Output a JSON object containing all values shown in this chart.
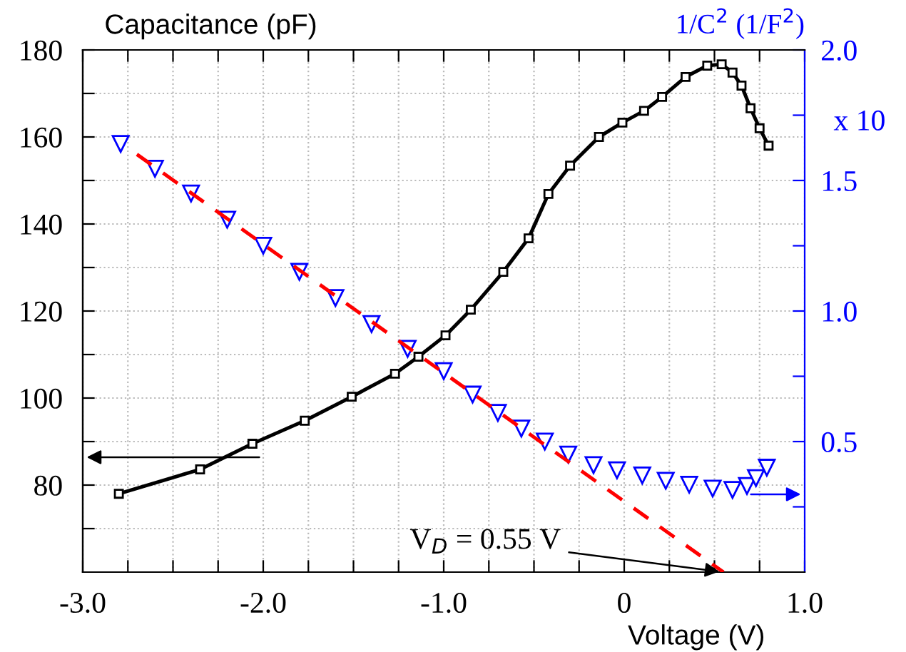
{
  "chart_data": {
    "type": "line",
    "xlabel": "Voltage (V)",
    "ylabel": "Capacitance (pF)",
    "y2label": "1/C$^{2}$ (1/F$^{2}$)",
    "annotations": [
      "x 10",
      {
        "text": "V$_{D}$ = 0.55 V",
        "x": 0.55,
        "y": 60
      }
    ],
    "xlim": [
      -3,
      1
    ],
    "xticks": [
      {
        "value": -3,
        "label": "-3.0"
      },
      {
        "value": -2.75,
        "label": null
      },
      {
        "value": -2.5,
        "label": null
      },
      {
        "value": -2.25,
        "label": null
      },
      {
        "value": -2,
        "label": "-2.0"
      },
      {
        "value": -1.75,
        "label": null
      },
      {
        "value": -1.5,
        "label": null
      },
      {
        "value": -1.25,
        "label": null
      },
      {
        "value": -1,
        "label": "-1.0"
      },
      {
        "value": -0.75,
        "label": null
      },
      {
        "value": -0.5,
        "label": null
      },
      {
        "value": -0.25,
        "label": null
      },
      0,
      {
        "value": 0.25,
        "label": null
      },
      {
        "value": 0.5,
        "label": null
      },
      {
        "value": 0.75,
        "label": null
      },
      {
        "value": 1,
        "label": "1.0"
      }
    ],
    "ylim": [
      60,
      180
    ],
    "yticks": [
      {
        "value": 70,
        "label": null
      },
      80,
      {
        "value": 90,
        "label": null
      },
      100,
      {
        "value": 110,
        "label": null
      },
      120,
      {
        "value": 130,
        "label": null
      },
      140,
      {
        "value": 150,
        "label": null
      },
      160,
      {
        "value": 170,
        "label": null
      },
      180
    ],
    "y2lim": [
      0,
      2
    ],
    "y2ticks": [
      {
        "value": 0.25,
        "label": null
      },
      {
        "value": 0.5,
        "label": "0.5"
      },
      {
        "value": 0.75,
        "label": null
      },
      {
        "value": 1,
        "label": "1.0"
      },
      {
        "value": 1.25,
        "label": null
      },
      {
        "value": 1.5,
        "label": "1.5"
      },
      {
        "value": 1.75,
        "label": null
      },
      {
        "value": 2,
        "label": "2.0"
      }
    ],
    "grid": true,
    "legend": false,
    "series": [
      {
        "color": "#000000",
        "marker": "square",
        "line_style": "solid",
        "x": [
          -2.8,
          -2.35,
          -2.06,
          -1.77,
          -1.51,
          -1.27,
          -1.14,
          -0.99,
          -0.85,
          -0.67,
          -0.53,
          -0.42,
          -0.3,
          -0.14,
          -0.01,
          0.11,
          0.21,
          0.34,
          0.46,
          0.54,
          0.6,
          0.65,
          0.7,
          0.75,
          0.8
        ],
        "values": [
          78,
          83.6,
          89.5,
          94.8,
          100.3,
          105.6,
          109.5,
          114.4,
          120.3,
          129,
          136.7,
          146.9,
          153.4,
          160,
          163.3,
          166,
          169.2,
          173.8,
          176.4,
          176.7,
          174.8,
          171.8,
          166.6,
          162,
          158
        ]
      },
      {
        "type": "scatter",
        "color": "#0000ff",
        "marker": "triangle",
        "axis": "y2",
        "x": [
          -2.79,
          -2.6,
          -2.4,
          -2.2,
          -2.0,
          -1.8,
          -1.6,
          -1.4,
          -1.2,
          -1.0,
          -0.84,
          -0.7,
          -0.57,
          -0.44,
          -0.31,
          -0.17,
          -0.04,
          0.1,
          0.23,
          0.36,
          0.49,
          0.6,
          0.68,
          0.73,
          0.79
        ],
        "values": [
          1.64,
          1.545,
          1.45,
          1.35,
          1.25,
          1.15,
          1.05,
          0.95,
          0.855,
          0.77,
          0.68,
          0.61,
          0.55,
          0.5,
          0.45,
          0.41,
          0.39,
          0.37,
          0.35,
          0.335,
          0.32,
          0.315,
          0.33,
          0.36,
          0.4
        ]
      },
      {
        "color": "#ff0000",
        "marker": "none",
        "line_style": "dashed",
        "axis": "y2",
        "x": [
          -2.7,
          0.55
        ],
        "values": [
          1.6,
          0.0
        ]
      }
    ]
  }
}
